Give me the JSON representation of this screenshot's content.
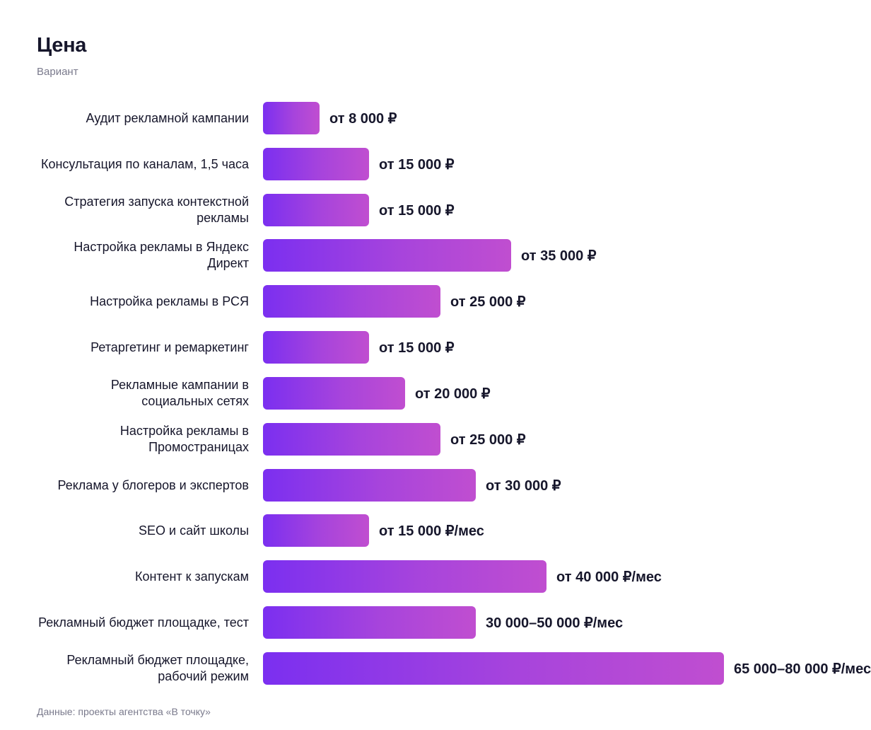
{
  "chart_data": {
    "type": "bar",
    "orientation": "horizontal",
    "title": "Цена",
    "subtitle": "Вариант",
    "source": "Данные: проекты агентства «В точку»",
    "categories": [
      "Аудит рекламной кампании",
      "Консультация по каналам, 1,5 часа",
      "Стратегия запуска контекстной рекламы",
      "Настройка рекламы в Яндекс Директ",
      "Настройка рекламы в РСЯ",
      "Ретаргетинг и ремаркетинг",
      "Рекламные кампании в социальных сетях",
      "Настройка рекламы в Промостраницах",
      "Реклама у блогеров и экспертов",
      "SEO и сайт школы",
      "Контент к запускам",
      "Рекламный бюджет площадке, тест",
      "Рекламный бюджет площадке, рабочий режим"
    ],
    "values": [
      8000,
      15000,
      15000,
      35000,
      25000,
      15000,
      20000,
      25000,
      30000,
      15000,
      40000,
      30000,
      65000
    ],
    "value_labels": [
      "от 8 000 ₽",
      "от 15 000 ₽",
      "от 15 000 ₽",
      "от 35 000 ₽",
      "от 25 000 ₽",
      "от 15 000 ₽",
      "от 20 000 ₽",
      "от 25 000 ₽",
      "от 30 000 ₽",
      "от 15 000 ₽/мес",
      "от 40 000 ₽/мес",
      "30 000–50 000 ₽/мес",
      "65 000–80 000 ₽/мес"
    ],
    "xlim": [
      0,
      65000
    ],
    "grid": false,
    "legend": "none",
    "colors": {
      "bar_gradient_start": "#7b2ff0",
      "bar_gradient_end": "#c04ed0",
      "text": "#16162b",
      "muted_text": "#7a7a8c"
    }
  }
}
